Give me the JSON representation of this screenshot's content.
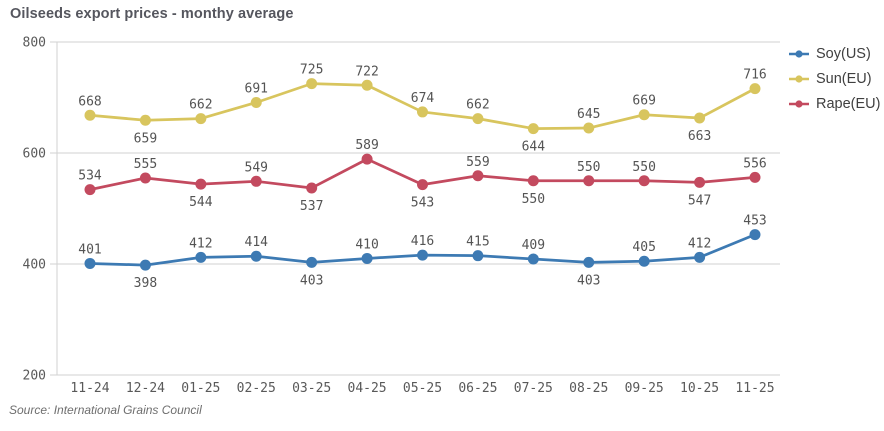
{
  "title": "Oilseeds export prices - monthy average",
  "source": "Source: International Grains Council",
  "colors": {
    "grid": "#d2d2d2",
    "axis_text": "#595959",
    "data_label": "#545454",
    "soy": "#3d7ab3",
    "sun": "#d8c55e",
    "rape": "#c34a5f"
  },
  "legend": {
    "position": "right",
    "items": [
      {
        "label": "Soy(US)",
        "color": "#3d7ab3"
      },
      {
        "label": "Sun(EU)",
        "color": "#d8c55e"
      },
      {
        "label": "Rape(EU)",
        "color": "#c34a5f"
      }
    ]
  },
  "chart_data": {
    "type": "line",
    "title": "Oilseeds export prices - monthy average",
    "xlabel": "",
    "ylabel": "",
    "ylim": [
      200,
      800
    ],
    "yticks": [
      200,
      400,
      600,
      800
    ],
    "grid": "horizontal",
    "marker": "circle",
    "legend_position": "right",
    "categories": [
      "11-24",
      "12-24",
      "01-25",
      "02-25",
      "03-25",
      "04-25",
      "05-25",
      "06-25",
      "07-25",
      "08-25",
      "09-25",
      "10-25",
      "11-25"
    ],
    "series": [
      {
        "name": "Soy(US)",
        "color": "#3d7ab3",
        "values": [
          401,
          398,
          412,
          414,
          403,
          410,
          416,
          415,
          409,
          403,
          405,
          412,
          453
        ],
        "label_below": [
          1,
          4,
          9
        ]
      },
      {
        "name": "Sun(EU)",
        "color": "#d8c55e",
        "values": [
          668,
          659,
          662,
          691,
          725,
          722,
          674,
          662,
          644,
          645,
          669,
          663,
          716
        ],
        "label_below": [
          1,
          8,
          11
        ]
      },
      {
        "name": "Rape(EU)",
        "color": "#c34a5f",
        "values": [
          534,
          555,
          544,
          549,
          537,
          589,
          543,
          559,
          550,
          550,
          550,
          547,
          556
        ],
        "label_below": [
          2,
          4,
          6,
          8,
          11
        ]
      }
    ]
  }
}
